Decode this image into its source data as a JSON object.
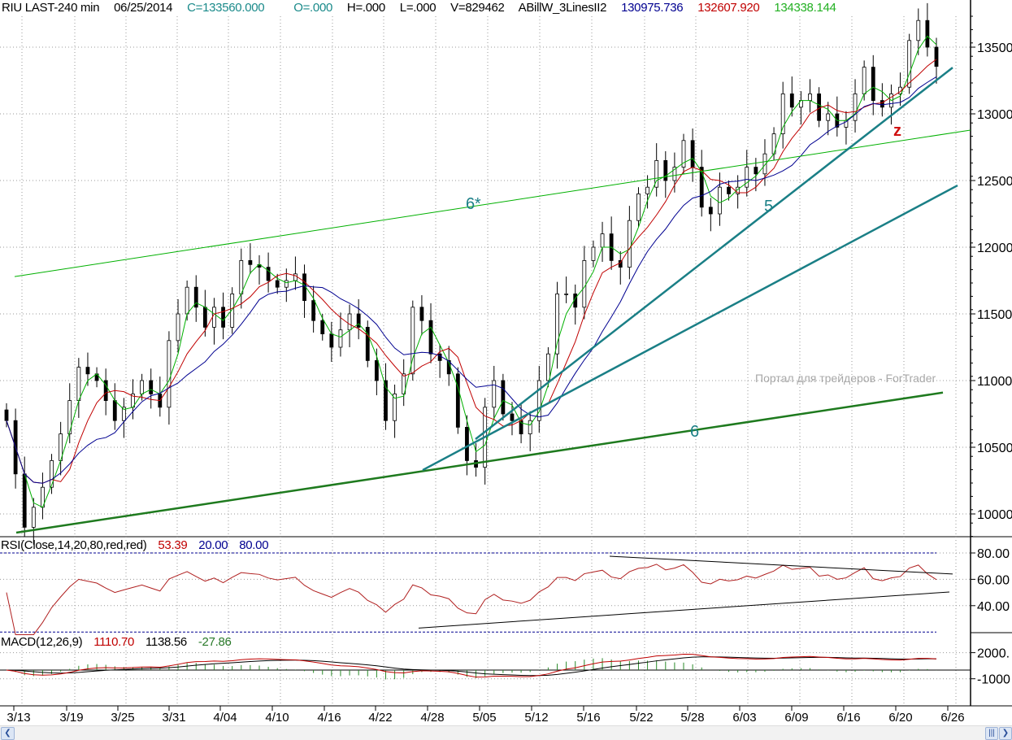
{
  "header": {
    "symbol": "RIU LAST-240 min",
    "date": "06/25/2014",
    "close": "C=133560.000",
    "open": "O=.000",
    "high": "H=.000",
    "low": "L=.000",
    "volume": "V=829462",
    "indicator": "ABillW_3LinesII2",
    "line_blue": "130975.736",
    "line_red": "132607.920",
    "line_green": "134338.144"
  },
  "rsi_label": {
    "name": "RSI(Close,14,20,80,red,red)",
    "value": "53.39",
    "low": "20.00",
    "high": "80.00"
  },
  "macd_label": {
    "name": "MACD(12,26,9)",
    "macd": "1110.70",
    "signal": "1138.56",
    "hist": "-27.86"
  },
  "watermark": "Портал для трейдеров - ForTrader",
  "annotations": {
    "l6star": "6*",
    "l5": "5",
    "l6": "6",
    "z": "z"
  },
  "colors": {
    "green": "#00b000",
    "red": "#c00000",
    "blue": "#000090",
    "teal": "#1a7f86",
    "trend": "#1e7a1e"
  },
  "chart_data": {
    "type": "candlestick",
    "title": "RIU LAST-240 min",
    "x_tick_labels": [
      "3/13",
      "3/19",
      "3/25",
      "3/31",
      "4/04",
      "4/10",
      "4/16",
      "4/22",
      "4/28",
      "5/05",
      "5/12",
      "5/16",
      "5/22",
      "5/28",
      "6/03",
      "6/09",
      "6/16",
      "6/20",
      "6/26"
    ],
    "price_ticks": [
      {
        "v": 135000,
        "label": "13500"
      },
      {
        "v": 130000,
        "label": "13000"
      },
      {
        "v": 125000,
        "label": "12500"
      },
      {
        "v": 120000,
        "label": "12000"
      },
      {
        "v": 115000,
        "label": "11500"
      },
      {
        "v": 110000,
        "label": "11000"
      },
      {
        "v": 105000,
        "label": "10500"
      },
      {
        "v": 100000,
        "label": "10000"
      }
    ],
    "price_range": [
      96500,
      138500
    ],
    "closes": [
      107000,
      103000,
      99000,
      100500,
      102000,
      104000,
      106000,
      108500,
      111000,
      110500,
      110000,
      108500,
      107000,
      108000,
      109000,
      110000,
      109000,
      108000,
      113000,
      115000,
      117000,
      115500,
      114000,
      115500,
      114000,
      116500,
      119000,
      118700,
      118500,
      117500,
      117000,
      117500,
      118000,
      116000,
      114500,
      113500,
      112500,
      113800,
      115000,
      114000,
      111500,
      110000,
      107000,
      109000,
      110500,
      115500,
      114500,
      112000,
      111500,
      110500,
      106500,
      104000,
      103500,
      108000,
      110000,
      107500,
      107000,
      106000,
      107000,
      110000,
      112000,
      116500,
      116500,
      115500,
      119000,
      120000,
      121000,
      119000,
      118500,
      122000,
      124000,
      124500,
      126500,
      125000,
      126000,
      128000,
      126000,
      123000,
      122500,
      124500,
      124000,
      124500,
      126000,
      125500,
      127000,
      128500,
      131500,
      130500,
      131000,
      131500,
      129500,
      130000,
      129000,
      129500,
      131500,
      133500,
      131000,
      130500,
      131500,
      132000,
      135500,
      137000,
      135000,
      133560
    ],
    "trendlines": [
      {
        "label": "6*",
        "from": {
          "bar": 0,
          "price": 117800
        },
        "to": {
          "bar": "end+",
          "price": 128780
        },
        "color": "green",
        "width": "thin"
      },
      {
        "label": "6",
        "from": {
          "bar": 0,
          "price": 98600
        },
        "to": {
          "bar": "near-end",
          "price": 109100
        },
        "color": "trend",
        "width": "thick"
      },
      {
        "label": "5",
        "from": {
          "date": "5/05",
          "price": 105610
        },
        "to": {
          "date": "6/26",
          "price": 133470
        },
        "color": "teal",
        "width": "thick"
      },
      {
        "label": "",
        "from": {
          "date": "4/28",
          "price": 103290
        },
        "to": {
          "date": "6/26",
          "price": 124630
        },
        "color": "teal",
        "width": "thick"
      }
    ],
    "moving_averages": [
      "green (fast)",
      "red (medium)",
      "blue (slow)"
    ],
    "rsi": {
      "period": 14,
      "levels": [
        20,
        80
      ],
      "ticks": [
        {
          "v": 80,
          "label": "80.00"
        },
        {
          "v": 60,
          "label": "60.00"
        },
        {
          "v": 40,
          "label": "40.00"
        }
      ],
      "trendlines": [
        {
          "from": 77.5,
          "to": 64
        },
        {
          "from": 23,
          "to": 50.4
        }
      ]
    },
    "macd": {
      "fast": 12,
      "slow": 26,
      "signal": 9,
      "ticks": [
        {
          "v": 2000,
          "label": "2000."
        },
        {
          "v": -1000,
          "label": "-1000"
        }
      ]
    }
  }
}
